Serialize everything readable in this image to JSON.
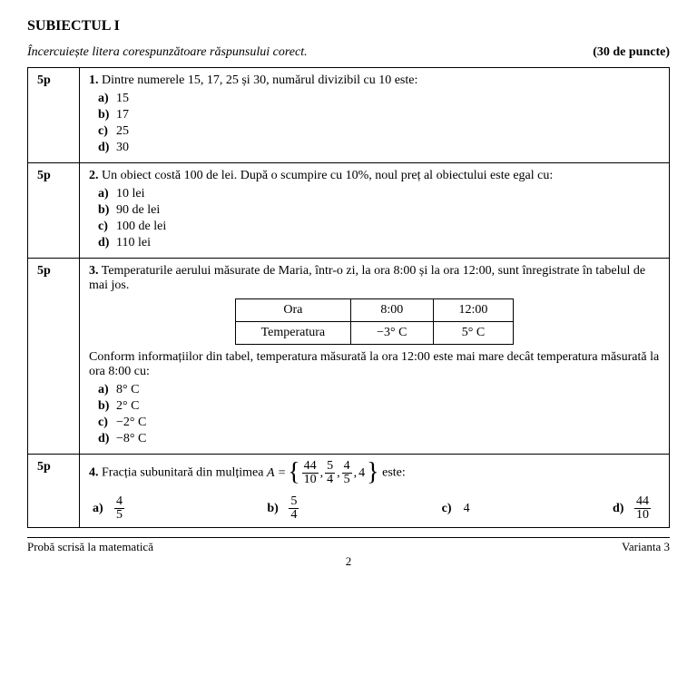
{
  "header": {
    "title": "SUBIECTUL I",
    "instruction": "Încercuiește litera corespunzătoare răspunsului corect.",
    "totalPoints": "(30 de puncte)"
  },
  "questions": {
    "q1": {
      "points": "5p",
      "num": "1.",
      "text": " Dintre numerele 15, 17, 25 și 30, numărul divizibil cu 10 este:",
      "a": "15",
      "b": "17",
      "c": "25",
      "d": "30"
    },
    "q2": {
      "points": "5p",
      "num": "2.",
      "text": " Un obiect costă 100 de lei. După o scumpire cu 10%, noul preț al obiectului este egal cu:",
      "a": "10 lei",
      "b": "90 de lei",
      "c": "100 de lei",
      "d": "110 lei"
    },
    "q3": {
      "points": "5p",
      "num": "3.",
      "text": " Temperaturile aerului măsurate de Maria, într-o zi, la ora 8:00 și la ora 12:00, sunt înregistrate în tabelul de mai jos.",
      "table": {
        "h1": "Ora",
        "h2": "8:00",
        "h3": "12:00",
        "r1": "Temperatura",
        "r2": "−3° C",
        "r3": "5° C"
      },
      "text2": "Conform informațiilor din tabel, temperatura măsurată la ora 12:00 este mai mare decât temperatura măsurată la ora 8:00 cu:",
      "a": "8° C",
      "b": "2° C",
      "c": "−2° C",
      "d": "−8° C"
    },
    "q4": {
      "points": "5p",
      "num": "4.",
      "textPrefix": " Fracția subunitară din mulțimea  ",
      "setVar": "A =",
      "f1n": "44",
      "f1d": "10",
      "f2n": "5",
      "f2d": "4",
      "f3n": "4",
      "f3d": "5",
      "last": "4",
      "textSuffix": "  este:",
      "a_n": "4",
      "a_d": "5",
      "b_n": "5",
      "b_d": "4",
      "c": "4",
      "d_n": "44",
      "d_d": "10"
    }
  },
  "labels": {
    "a": "a)",
    "b": "b)",
    "c": "c)",
    "d": "d)"
  },
  "footer": {
    "left": "Probă scrisă la matematică",
    "right": "Varianta 3",
    "page": "2"
  }
}
